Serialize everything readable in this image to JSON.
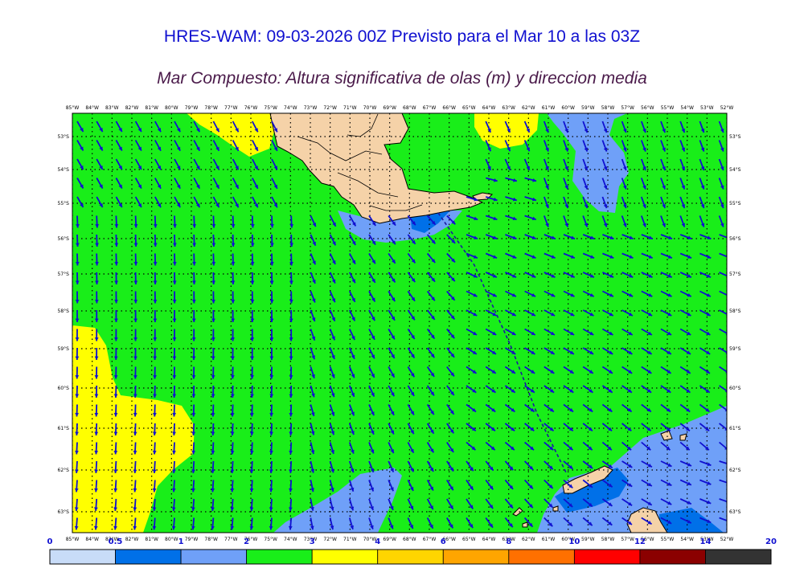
{
  "title": "HRES-WAM: 09-03-2026 00Z Previsto para el Mar 10 a las 03Z",
  "subtitle": "Mar Compuesto: Altura significativa de olas (m) y direccion media",
  "map": {
    "lon_labels": [
      "85°W",
      "84°W",
      "83°W",
      "82°W",
      "81°W",
      "80°W",
      "79°W",
      "78°W",
      "77°W",
      "76°W",
      "75°W",
      "74°W",
      "73°W",
      "72°W",
      "71°W",
      "70°W",
      "69°W",
      "68°W",
      "67°W",
      "66°W",
      "65°W",
      "64°W",
      "63°W",
      "62°W",
      "61°W",
      "60°W",
      "59°W",
      "58°W",
      "57°W",
      "56°W",
      "55°W",
      "54°W",
      "53°W",
      "52°W"
    ],
    "lat_labels": [
      "53°S",
      "54°S",
      "55°S",
      "56°S",
      "57°S",
      "58°S",
      "59°S",
      "60°S",
      "61°S",
      "62°S",
      "63°S"
    ],
    "colors": {
      "land": "#f5d2a8",
      "sea_0_5_1": "#0070e8",
      "sea_1_2": "#6fa0f8",
      "sea_2_3": "#19ee19",
      "sea_3_4": "#ffff00",
      "arrow": "#1010d0",
      "route": "#1a1aa0",
      "grid": "#000000"
    }
  },
  "legend": {
    "ticks": [
      "0",
      "0.5",
      "1",
      "2",
      "3",
      "4",
      "6",
      "8",
      "10",
      "12",
      "14",
      "20"
    ],
    "bins": [
      {
        "from": "0",
        "to": "0.5",
        "color": "#c8dcf8"
      },
      {
        "from": "0.5",
        "to": "1",
        "color": "#0070e8"
      },
      {
        "from": "1",
        "to": "2",
        "color": "#6fa0f8"
      },
      {
        "from": "2",
        "to": "3",
        "color": "#19ee19"
      },
      {
        "from": "3",
        "to": "4",
        "color": "#ffff00"
      },
      {
        "from": "4",
        "to": "6",
        "color": "#ffd500"
      },
      {
        "from": "6",
        "to": "8",
        "color": "#ffa500"
      },
      {
        "from": "8",
        "to": "10",
        "color": "#ff7000"
      },
      {
        "from": "10",
        "to": "12",
        "color": "#ff0000"
      },
      {
        "from": "12",
        "to": "14",
        "color": "#8b0000"
      },
      {
        "from": "14",
        "to": "20",
        "color": "#333333"
      }
    ]
  }
}
